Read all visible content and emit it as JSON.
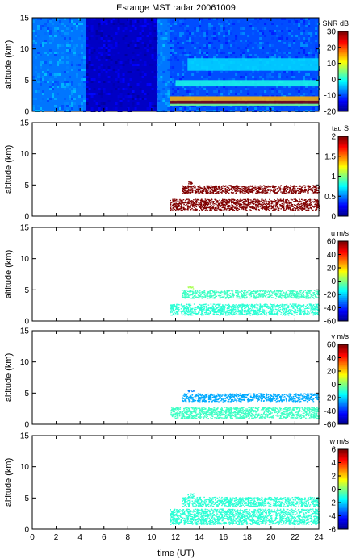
{
  "figure": {
    "title": "Esrange MST radar 20061009",
    "xlabel": "time (UT)"
  },
  "colors": {
    "jet": [
      "#00008f",
      "#0000ff",
      "#0080ff",
      "#00ffff",
      "#80ff80",
      "#ffff00",
      "#ff8000",
      "#ff0000",
      "#800000"
    ],
    "axis": "#000000",
    "background": "#ffffff"
  },
  "chart_data": [
    {
      "type": "heatmap",
      "id": "snr",
      "ylabel": "altitude (km)",
      "colorbar_label": "SNR dB",
      "clim": [
        -20,
        30
      ],
      "colorbar_ticks": [
        -20,
        -10,
        0,
        10,
        20,
        30
      ],
      "xlim": [
        0,
        24
      ],
      "ylim": [
        0,
        15
      ],
      "x_ticks": [
        0,
        2,
        4,
        6,
        8,
        10,
        12,
        14,
        16,
        18,
        20,
        22,
        24
      ],
      "y_ticks": [
        0,
        5,
        10,
        15
      ],
      "grid": false,
      "data_time_range": [
        0,
        24
      ],
      "regions": [
        {
          "time": [
            0,
            4.5
          ],
          "altitude": [
            0,
            15
          ],
          "approx_value": -8
        },
        {
          "time": [
            4.5,
            10.5
          ],
          "altitude": [
            0,
            15
          ],
          "approx_value": -17
        },
        {
          "time": [
            10.5,
            11.5
          ],
          "altitude": [
            0,
            15
          ],
          "approx_value": -8
        },
        {
          "time": [
            11.5,
            24
          ],
          "altitude": [
            0,
            15
          ],
          "approx_value": -10
        }
      ],
      "layers": [
        {
          "time": [
            11.5,
            24
          ],
          "altitude": [
            1.2,
            1.7
          ],
          "approx_value": 30
        },
        {
          "time": [
            11.5,
            24
          ],
          "altitude": [
            1.7,
            2.4
          ],
          "approx_value": 15
        },
        {
          "time": [
            11.5,
            24
          ],
          "altitude": [
            0.8,
            1.2
          ],
          "approx_value": 5
        },
        {
          "time": [
            12,
            24
          ],
          "altitude": [
            4.0,
            5.0
          ],
          "approx_value": 0
        },
        {
          "time": [
            13,
            24
          ],
          "altitude": [
            6.5,
            8.5
          ],
          "approx_value": -3
        }
      ]
    },
    {
      "type": "scatter",
      "id": "tau",
      "ylabel": "altitude (km)",
      "colorbar_label": "tau S",
      "clim": [
        0,
        2
      ],
      "colorbar_ticks": [
        0,
        0.5,
        1,
        1.5,
        2
      ],
      "xlim": [
        0,
        24
      ],
      "ylim": [
        0,
        15
      ],
      "x_ticks": [
        0,
        2,
        4,
        6,
        8,
        10,
        12,
        14,
        16,
        18,
        20,
        22,
        24
      ],
      "y_ticks": [
        0,
        5,
        10,
        15
      ],
      "data_time_range": [
        11.5,
        24
      ],
      "layers": [
        {
          "time": [
            11.5,
            24
          ],
          "altitude": [
            1.0,
            2.8
          ],
          "value": 2.0
        },
        {
          "time": [
            12.5,
            24
          ],
          "altitude": [
            3.7,
            5.0
          ],
          "value": 2.0
        },
        {
          "time": [
            13.0,
            13.5
          ],
          "altitude": [
            5.2,
            5.6
          ],
          "value": 2.0
        }
      ]
    },
    {
      "type": "scatter",
      "id": "u",
      "ylabel": "altitude (km)",
      "colorbar_label": "u m/s",
      "clim": [
        -60,
        60
      ],
      "colorbar_ticks": [
        -60,
        -40,
        -20,
        0,
        20,
        40,
        60
      ],
      "xlim": [
        0,
        24
      ],
      "ylim": [
        0,
        15
      ],
      "x_ticks": [
        0,
        2,
        4,
        6,
        8,
        10,
        12,
        14,
        16,
        18,
        20,
        22,
        24
      ],
      "y_ticks": [
        0,
        5,
        10,
        15
      ],
      "data_time_range": [
        11.5,
        24
      ],
      "layers": [
        {
          "time": [
            11.5,
            24
          ],
          "altitude": [
            1.0,
            2.8
          ],
          "value": -10
        },
        {
          "time": [
            12.5,
            24
          ],
          "altitude": [
            3.7,
            5.0
          ],
          "value": -8
        },
        {
          "time": [
            13.0,
            13.5
          ],
          "altitude": [
            5.2,
            5.6
          ],
          "value": 5
        }
      ]
    },
    {
      "type": "scatter",
      "id": "v",
      "ylabel": "altitude (km)",
      "colorbar_label": "v m/s",
      "clim": [
        -60,
        60
      ],
      "colorbar_ticks": [
        -60,
        -40,
        -20,
        0,
        20,
        40,
        60
      ],
      "xlim": [
        0,
        24
      ],
      "ylim": [
        0,
        15
      ],
      "x_ticks": [
        0,
        2,
        4,
        6,
        8,
        10,
        12,
        14,
        16,
        18,
        20,
        22,
        24
      ],
      "y_ticks": [
        0,
        5,
        10,
        15
      ],
      "data_time_range": [
        11.5,
        24
      ],
      "layers": [
        {
          "time": [
            11.5,
            24
          ],
          "altitude": [
            1.0,
            2.8
          ],
          "value": -8
        },
        {
          "time": [
            12.5,
            24
          ],
          "altitude": [
            3.7,
            5.0
          ],
          "value": -25
        },
        {
          "time": [
            13.0,
            13.5
          ],
          "altitude": [
            5.2,
            5.6
          ],
          "value": -30
        }
      ]
    },
    {
      "type": "scatter",
      "id": "w",
      "ylabel": "altitude (km)",
      "colorbar_label": "w m/s",
      "clim": [
        -6,
        6
      ],
      "colorbar_ticks": [
        -6,
        -4,
        -2,
        0,
        2,
        4,
        6
      ],
      "xlim": [
        0,
        24
      ],
      "ylim": [
        0,
        15
      ],
      "x_ticks": [
        0,
        2,
        4,
        6,
        8,
        10,
        12,
        14,
        16,
        18,
        20,
        22,
        24
      ],
      "x_ticklabels_shown": true,
      "y_ticks": [
        0,
        5,
        10,
        15
      ],
      "data_time_range": [
        11.5,
        24
      ],
      "layers": [
        {
          "time": [
            11.5,
            24
          ],
          "altitude": [
            0.8,
            3.3
          ],
          "value": -1
        },
        {
          "time": [
            12.5,
            24
          ],
          "altitude": [
            3.7,
            5.2
          ],
          "value": -1
        },
        {
          "time": [
            13.0,
            13.5
          ],
          "altitude": [
            5.2,
            5.8
          ],
          "value": -1
        }
      ]
    }
  ]
}
